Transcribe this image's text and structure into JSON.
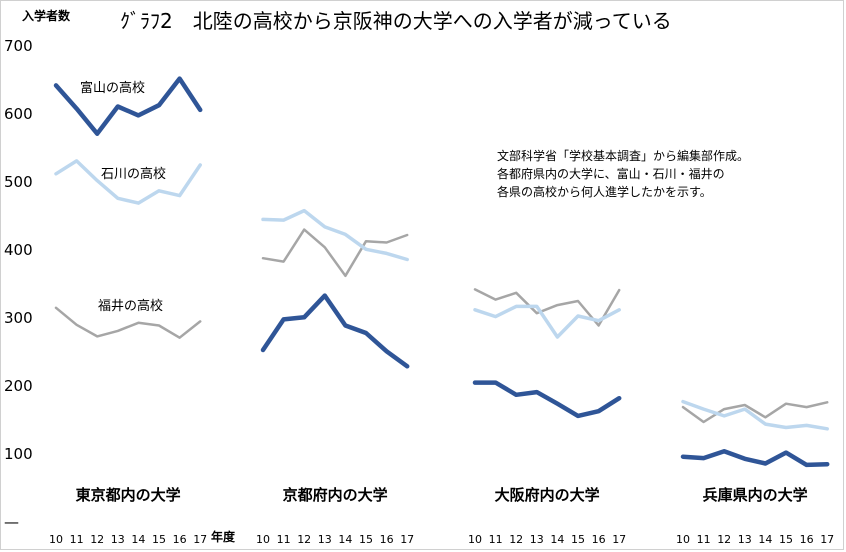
{
  "chart_data": {
    "type": "line",
    "title": "ｸﾞﾗﾌ2　北陸の高校から京阪神の大学への入学者が減っている",
    "ylabel": "入学者数",
    "xlabel": "年度",
    "ylim": [
      0,
      700
    ],
    "yticks": [
      "700",
      "600",
      "500",
      "400",
      "300",
      "200",
      "100",
      "—"
    ],
    "x": [
      "10",
      "11",
      "12",
      "13",
      "14",
      "15",
      "16",
      "17"
    ],
    "series_labels": {
      "toyama": "富山の高校",
      "ishikawa": "石川の高校",
      "fukui": "福井の高校"
    },
    "colors": {
      "toyama": "#2f5597",
      "ishikawa": "#bdd7ee",
      "fukui": "#a6a6a6"
    },
    "note": [
      "文部科学省「学校基本調査」から編集部作成。",
      "各都府県内の大学に、富山・石川・福井の",
      "各県の高校から何人進学したかを示す。"
    ],
    "panels": [
      {
        "name": "東京都内の大学",
        "toyama": [
          642,
          608,
          571,
          611,
          598,
          613,
          652,
          606
        ],
        "ishikawa": [
          512,
          531,
          502,
          476,
          469,
          487,
          480,
          525
        ],
        "fukui": [
          315,
          290,
          273,
          281,
          293,
          289,
          271,
          295
        ]
      },
      {
        "name": "京都府内の大学",
        "toyama": [
          253,
          298,
          301,
          333,
          289,
          278,
          251,
          229
        ],
        "ishikawa": [
          445,
          444,
          458,
          434,
          423,
          401,
          395,
          386
        ],
        "fukui": [
          388,
          383,
          430,
          404,
          362,
          413,
          411,
          422
        ]
      },
      {
        "name": "大阪府内の大学",
        "toyama": [
          205,
          205,
          187,
          191,
          174,
          156,
          163,
          182
        ],
        "ishikawa": [
          312,
          302,
          317,
          317,
          272,
          303,
          296,
          312
        ],
        "fukui": [
          342,
          327,
          337,
          307,
          319,
          325,
          289,
          341
        ]
      },
      {
        "name": "兵庫県内の大学",
        "toyama": [
          96,
          94,
          104,
          93,
          86,
          102,
          84,
          85
        ],
        "ishikawa": [
          177,
          166,
          156,
          166,
          144,
          139,
          142,
          137
        ],
        "fukui": [
          169,
          147,
          166,
          172,
          154,
          174,
          169,
          176
        ]
      }
    ]
  }
}
